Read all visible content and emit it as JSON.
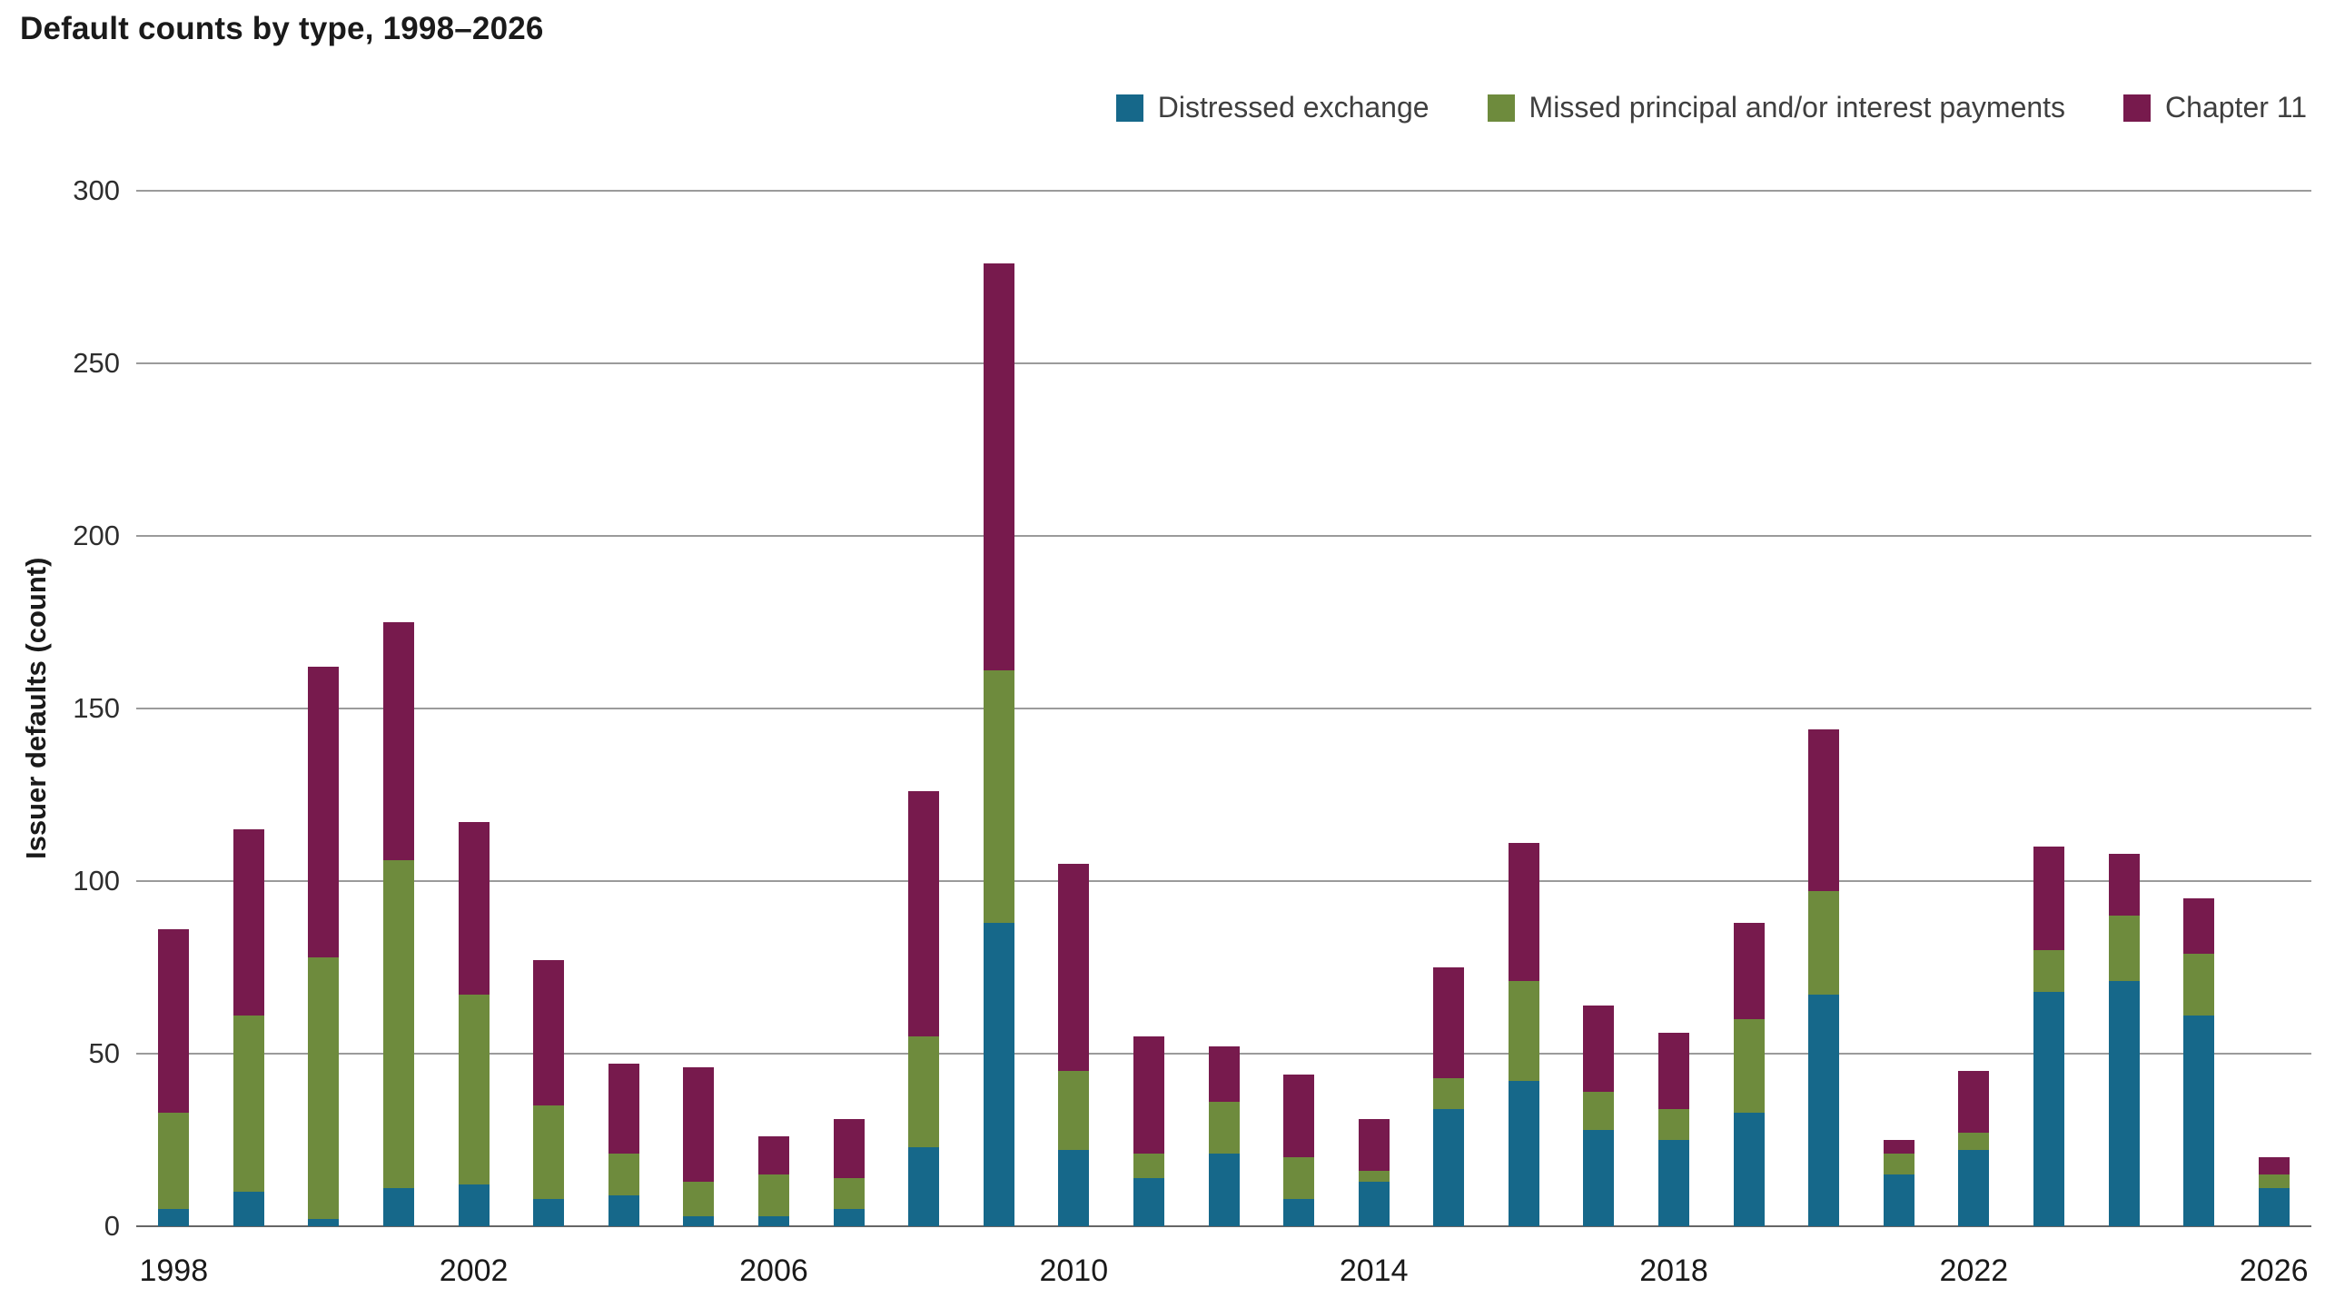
{
  "title": "Default counts by type, 1998–2026",
  "ylabel": "Issuer defaults (count)",
  "chart_data": {
    "type": "bar",
    "stacked": true,
    "title": "Default counts by type, 1998–2026",
    "xlabel": "",
    "ylabel": "Issuer defaults (count)",
    "ylim": [
      0,
      300
    ],
    "yticks": [
      0,
      50,
      100,
      150,
      200,
      250,
      300
    ],
    "grid": true,
    "legend_position": "top-right",
    "categories": [
      1998,
      1999,
      2000,
      2001,
      2002,
      2003,
      2004,
      2005,
      2006,
      2007,
      2008,
      2009,
      2010,
      2011,
      2012,
      2013,
      2014,
      2015,
      2016,
      2017,
      2018,
      2019,
      2020,
      2021,
      2022,
      2023,
      2024,
      2025,
      2026
    ],
    "x_ticks": [
      {
        "index": 0,
        "label": "1998"
      },
      {
        "index": 4,
        "label": "2002"
      },
      {
        "index": 8,
        "label": "2006"
      },
      {
        "index": 12,
        "label": "2010"
      },
      {
        "index": 16,
        "label": "2014"
      },
      {
        "index": 20,
        "label": "2018"
      },
      {
        "index": 24,
        "label": "2022"
      },
      {
        "index": 28,
        "label": "2026"
      }
    ],
    "series": [
      {
        "name": "Distressed exchange",
        "color": "#16688a",
        "values": [
          5,
          10,
          2,
          11,
          12,
          8,
          9,
          3,
          3,
          5,
          23,
          88,
          22,
          14,
          21,
          8,
          13,
          34,
          42,
          28,
          25,
          33,
          67,
          15,
          22,
          68,
          71,
          61,
          11
        ]
      },
      {
        "name": "Missed principal and/or interest payments",
        "color": "#6e8b3d",
        "values": [
          28,
          51,
          76,
          95,
          55,
          27,
          12,
          10,
          12,
          9,
          32,
          73,
          23,
          7,
          15,
          12,
          3,
          9,
          29,
          11,
          9,
          27,
          30,
          6,
          5,
          12,
          19,
          18,
          4
        ]
      },
      {
        "name": "Chapter 11",
        "color": "#771a4d",
        "values": [
          53,
          54,
          84,
          69,
          50,
          42,
          26,
          33,
          11,
          17,
          71,
          118,
          60,
          34,
          16,
          24,
          15,
          32,
          40,
          25,
          22,
          28,
          47,
          4,
          18,
          30,
          18,
          16,
          5
        ]
      }
    ]
  }
}
